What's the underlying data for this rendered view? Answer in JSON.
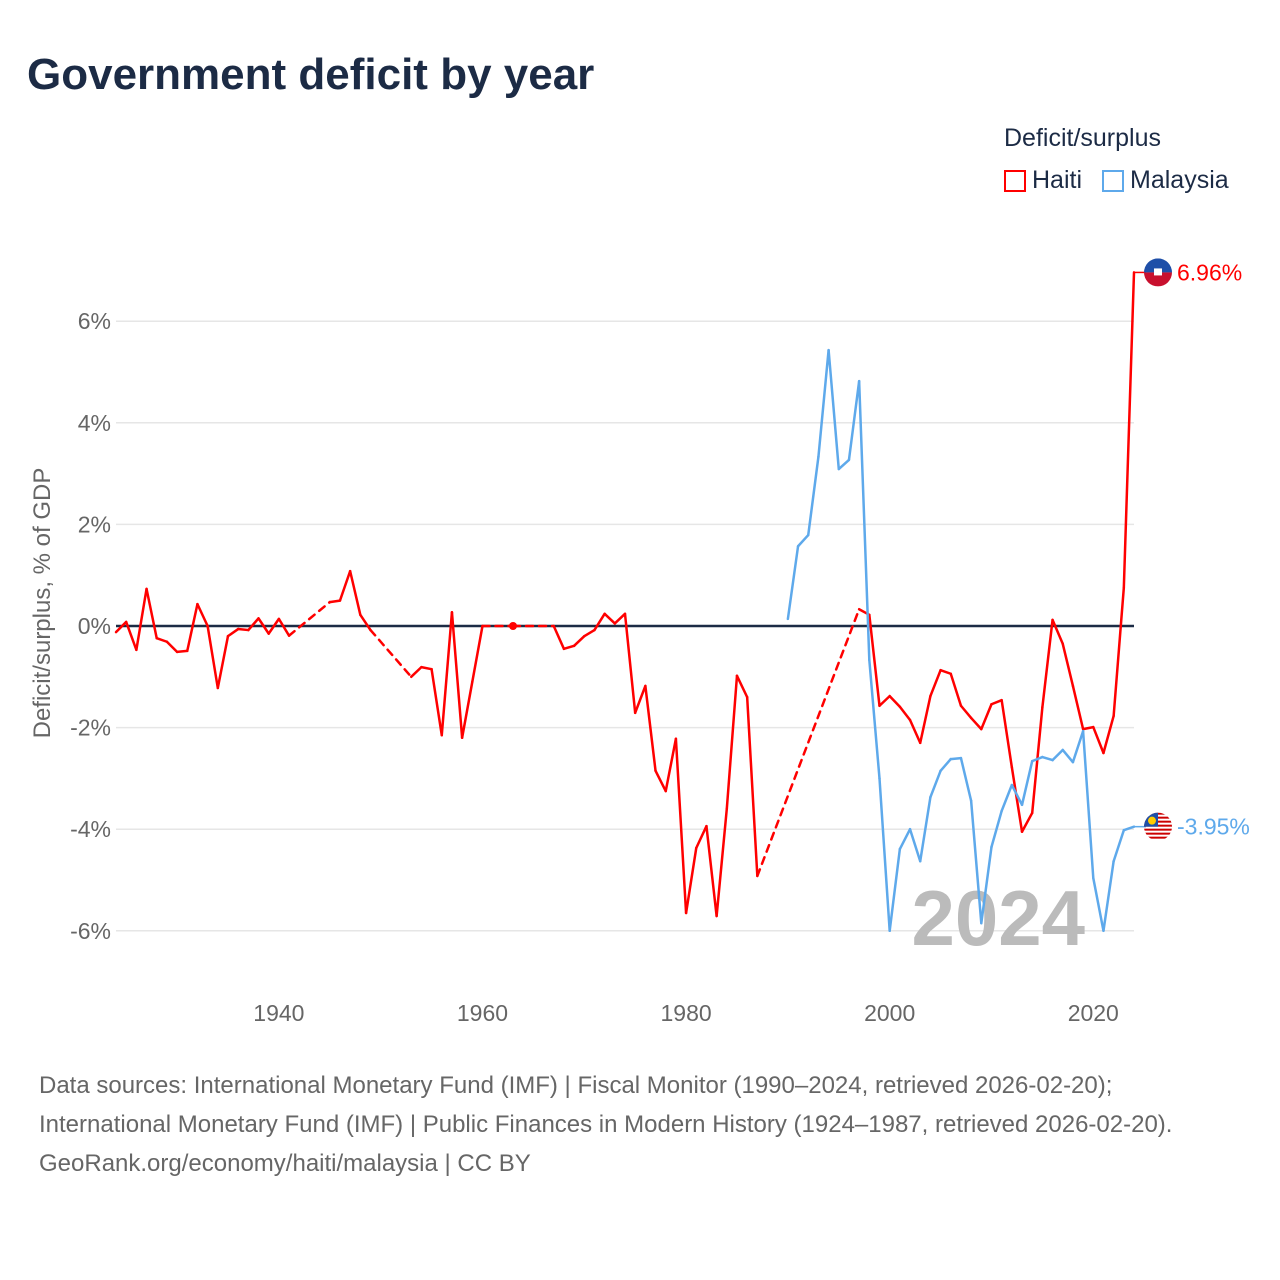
{
  "title": "Government deficit by year",
  "legend": {
    "title": "Deficit/surplus",
    "items": [
      {
        "label": "Haiti",
        "color": "#ff0000"
      },
      {
        "label": "Malaysia",
        "color": "#5ea9eb"
      }
    ]
  },
  "chart_data": {
    "type": "line",
    "title": "Government deficit by year",
    "xlabel": "",
    "ylabel": "Deficit/surplus, % of GDP",
    "xlim": [
      1924,
      2024
    ],
    "ylim": [
      -6,
      7
    ],
    "x_ticks": [
      1940,
      1960,
      1980,
      2000,
      2020
    ],
    "x_tick_labels": [
      "1940",
      "1960",
      "1980",
      "2000",
      "2020"
    ],
    "y_ticks": [
      6,
      4,
      2,
      0,
      -2,
      -4,
      -6
    ],
    "y_tick_labels": [
      "6%",
      "4%",
      "2%",
      "0%",
      "-2%",
      "-4%",
      "-6%"
    ],
    "grid": true,
    "legend_position": "top-right",
    "year_watermark": "2024",
    "series": [
      {
        "name": "Haiti",
        "color": "#ff0000",
        "end_label": "6.96%",
        "points": [
          [
            1924,
            -0.12
          ],
          [
            1925,
            0.08
          ],
          [
            1926,
            -0.47
          ],
          [
            1927,
            0.73
          ],
          [
            1928,
            -0.24
          ],
          [
            1929,
            -0.31
          ],
          [
            1930,
            -0.51
          ],
          [
            1931,
            -0.49
          ],
          [
            1932,
            0.43
          ],
          [
            1933,
            0.0
          ],
          [
            1934,
            -1.22
          ],
          [
            1935,
            -0.2
          ],
          [
            1936,
            -0.06
          ],
          [
            1937,
            -0.08
          ],
          [
            1938,
            0.15
          ],
          [
            1939,
            -0.15
          ],
          [
            1940,
            0.14
          ],
          [
            1941,
            -0.19
          ],
          [
            1945,
            0.47
          ],
          [
            1946,
            0.5
          ],
          [
            1947,
            1.08
          ],
          [
            1948,
            0.22
          ],
          [
            1949,
            -0.08
          ],
          [
            1953,
            -1.0
          ],
          [
            1954,
            -0.81
          ],
          [
            1955,
            -0.85
          ],
          [
            1956,
            -2.15
          ],
          [
            1957,
            0.27
          ],
          [
            1958,
            -2.2
          ],
          [
            1959,
            -1.1
          ],
          [
            1960,
            0.0
          ],
          [
            1963,
            0.0
          ],
          [
            1967,
            0.0
          ],
          [
            1968,
            -0.45
          ],
          [
            1969,
            -0.39
          ],
          [
            1970,
            -0.2
          ],
          [
            1971,
            -0.08
          ],
          [
            1972,
            0.24
          ],
          [
            1973,
            0.05
          ],
          [
            1974,
            0.24
          ],
          [
            1975,
            -1.71
          ],
          [
            1976,
            -1.18
          ],
          [
            1977,
            -2.85
          ],
          [
            1978,
            -3.25
          ],
          [
            1979,
            -2.22
          ],
          [
            1980,
            -5.65
          ],
          [
            1981,
            -4.37
          ],
          [
            1982,
            -3.94
          ],
          [
            1983,
            -5.71
          ],
          [
            1984,
            -3.6
          ],
          [
            1985,
            -0.98
          ],
          [
            1986,
            -1.4
          ],
          [
            1987,
            -4.92
          ],
          [
            1997,
            0.33
          ],
          [
            1998,
            0.22
          ],
          [
            1999,
            -1.57
          ],
          [
            2000,
            -1.38
          ],
          [
            2001,
            -1.59
          ],
          [
            2002,
            -1.85
          ],
          [
            2003,
            -2.3
          ],
          [
            2004,
            -1.38
          ],
          [
            2005,
            -0.87
          ],
          [
            2006,
            -0.94
          ],
          [
            2007,
            -1.57
          ],
          [
            2008,
            -1.81
          ],
          [
            2009,
            -2.03
          ],
          [
            2010,
            -1.54
          ],
          [
            2011,
            -1.46
          ],
          [
            2012,
            -2.78
          ],
          [
            2013,
            -4.05
          ],
          [
            2014,
            -3.68
          ],
          [
            2015,
            -1.6
          ],
          [
            2016,
            0.12
          ],
          [
            2017,
            -0.35
          ],
          [
            2018,
            -1.18
          ],
          [
            2019,
            -2.03
          ],
          [
            2020,
            -1.99
          ],
          [
            2021,
            -2.5
          ],
          [
            2022,
            -1.77
          ],
          [
            2023,
            0.75
          ],
          [
            2024,
            6.96
          ]
        ]
      },
      {
        "name": "Malaysia",
        "color": "#5ea9eb",
        "end_label": "-3.95%",
        "points": [
          [
            1990,
            0.14
          ],
          [
            1991,
            1.57
          ],
          [
            1992,
            1.79
          ],
          [
            1993,
            3.33
          ],
          [
            1994,
            5.43
          ],
          [
            1995,
            3.09
          ],
          [
            1996,
            3.27
          ],
          [
            1997,
            4.82
          ],
          [
            1998,
            -0.67
          ],
          [
            1999,
            -3.0
          ],
          [
            2000,
            -6.0
          ],
          [
            2001,
            -4.39
          ],
          [
            2002,
            -4.0
          ],
          [
            2003,
            -4.63
          ],
          [
            2004,
            -3.37
          ],
          [
            2005,
            -2.85
          ],
          [
            2006,
            -2.62
          ],
          [
            2007,
            -2.6
          ],
          [
            2008,
            -3.44
          ],
          [
            2009,
            -5.85
          ],
          [
            2010,
            -4.35
          ],
          [
            2011,
            -3.64
          ],
          [
            2012,
            -3.13
          ],
          [
            2013,
            -3.52
          ],
          [
            2014,
            -2.66
          ],
          [
            2015,
            -2.58
          ],
          [
            2016,
            -2.64
          ],
          [
            2017,
            -2.44
          ],
          [
            2018,
            -2.68
          ],
          [
            2019,
            -2.07
          ],
          [
            2020,
            -4.96
          ],
          [
            2021,
            -6.0
          ],
          [
            2022,
            -4.63
          ],
          [
            2023,
            -4.02
          ],
          [
            2024,
            -3.95
          ]
        ]
      }
    ]
  },
  "footer": {
    "sources": "Data sources: International Monetary Fund (IMF) | Fiscal Monitor (1990–2024, retrieved 2026-02-20); International Monetary Fund (IMF) | Public Finances in Modern History (1924–1987, retrieved 2026-02-20).",
    "link": "GeoRank.org/economy/haiti/malaysia | CC BY"
  }
}
